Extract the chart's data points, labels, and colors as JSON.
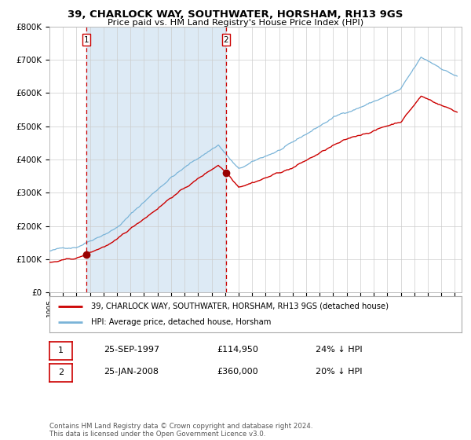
{
  "title": "39, CHARLOCK WAY, SOUTHWATER, HORSHAM, RH13 9GS",
  "subtitle": "Price paid vs. HM Land Registry's House Price Index (HPI)",
  "legend_line1": "39, CHARLOCK WAY, SOUTHWATER, HORSHAM, RH13 9GS (detached house)",
  "legend_line2": "HPI: Average price, detached house, Horsham",
  "sale1_date": "25-SEP-1997",
  "sale1_price": 114950,
  "sale1_pct": "24% ↓ HPI",
  "sale2_date": "25-JAN-2008",
  "sale2_price": 360000,
  "sale2_pct": "20% ↓ HPI",
  "footnote": "Contains HM Land Registry data © Crown copyright and database right 2024.\nThis data is licensed under the Open Government Licence v3.0.",
  "hpi_color": "#7ab4d8",
  "price_color": "#cc0000",
  "sale_marker_color": "#990000",
  "vline_color": "#cc0000",
  "shade_color": "#ddeaf5",
  "grid_color": "#cccccc",
  "bg_color": "#ffffff",
  "xmin": 1995.0,
  "xmax": 2025.5,
  "ymin": 0,
  "ymax": 800000,
  "sale1_x": 1997.73,
  "sale2_x": 2008.07
}
